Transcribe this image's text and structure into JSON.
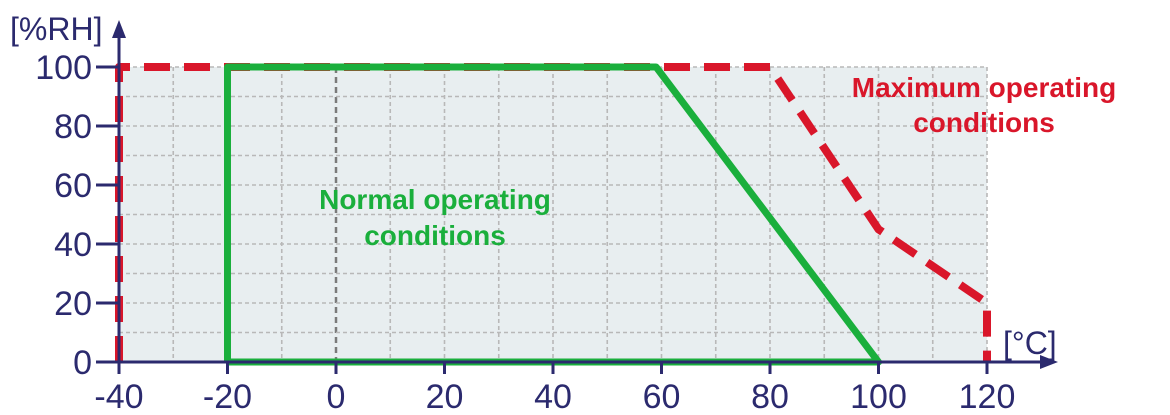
{
  "chart_data": {
    "type": "line",
    "x_unit": "[°C]",
    "y_unit": "[%RH]",
    "x_ticks": [
      "-40",
      "-20",
      "0",
      "20",
      "40",
      "60",
      "80",
      "100",
      "120"
    ],
    "y_ticks": [
      "0",
      "20",
      "40",
      "60",
      "80",
      "100"
    ],
    "xlim": [
      -40,
      120
    ],
    "ylim": [
      0,
      100
    ],
    "grid": true,
    "series": [
      {
        "name": "Normal operating conditions",
        "style": "solid",
        "color": "#1aaf3c",
        "points": [
          [
            -20,
            0
          ],
          [
            -20,
            100
          ],
          [
            59,
            100
          ],
          [
            100,
            0
          ],
          [
            -20,
            0
          ]
        ]
      },
      {
        "name": "Maximum operating conditions",
        "style": "dashed",
        "color": "#d9162a",
        "points": [
          [
            -40,
            0
          ],
          [
            -40,
            100
          ],
          [
            80,
            100
          ],
          [
            100,
            45
          ],
          [
            120,
            20
          ],
          [
            120,
            0
          ]
        ]
      }
    ],
    "annotations": [
      {
        "lines": [
          "Normal operating",
          "conditions"
        ],
        "color": "#1aaf3c"
      },
      {
        "lines": [
          "Maximum operating",
          "conditions"
        ],
        "color": "#d9162a"
      }
    ],
    "colors": {
      "plot_background": "#e8eef0",
      "grid": "#b8b8b8",
      "zero_line": "#7a7a7a",
      "axis": "#2b2a6e",
      "tick_text": "#2b2a6e"
    }
  }
}
